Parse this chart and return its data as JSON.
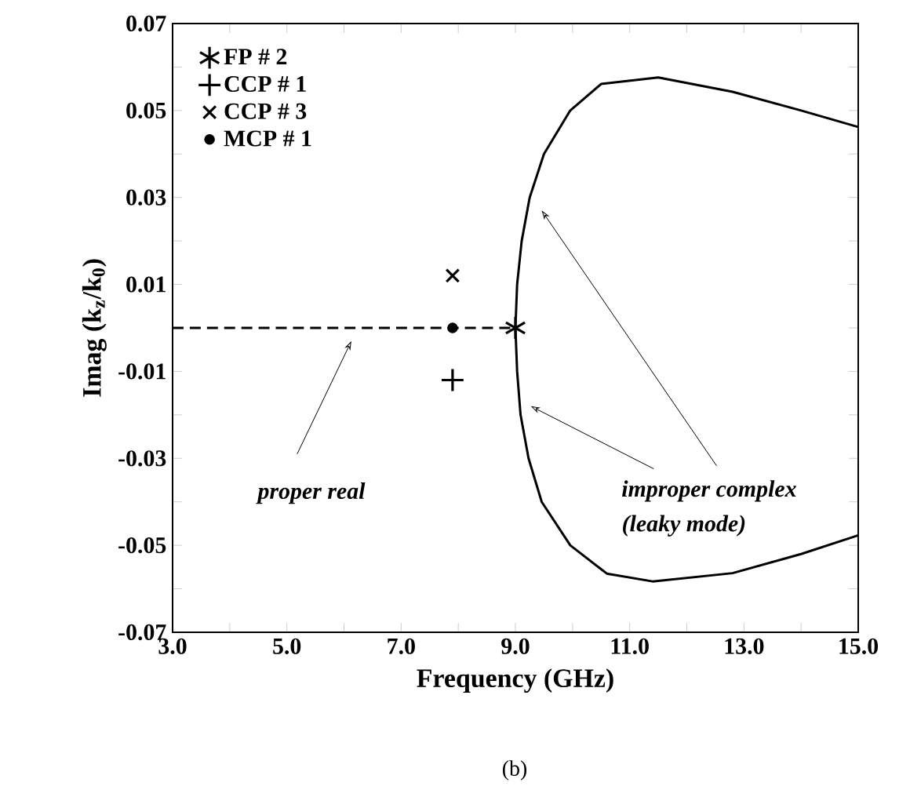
{
  "chart_data": {
    "type": "scatter",
    "xlabel": "Frequency (GHz)",
    "ylabel": "Imag (k$_{z}$/k$_{0}$)",
    "xlim": [
      3,
      15
    ],
    "ylim": [
      -0.07,
      0.07
    ],
    "xticks": [
      {
        "value": 3,
        "label": "3.0"
      },
      {
        "value": 4,
        "label": null
      },
      {
        "value": 5,
        "label": "5.0"
      },
      {
        "value": 6,
        "label": null
      },
      {
        "value": 7,
        "label": "7.0"
      },
      {
        "value": 8,
        "label": null
      },
      {
        "value": 9,
        "label": "9.0"
      },
      {
        "value": 10,
        "label": null
      },
      {
        "value": 11,
        "label": "11.0"
      },
      {
        "value": 12,
        "label": null
      },
      {
        "value": 13,
        "label": "13.0"
      },
      {
        "value": 14,
        "label": null
      },
      {
        "value": 15,
        "label": "15.0"
      }
    ],
    "yticks": [
      -0.07,
      {
        "value": -0.06,
        "label": null
      },
      -0.05,
      {
        "value": -0.04,
        "label": null
      },
      -0.03,
      {
        "value": -0.02,
        "label": null
      },
      -0.01,
      {
        "value": 0,
        "label": null
      },
      0.01,
      {
        "value": 0.02,
        "label": null
      },
      0.03,
      {
        "value": 0.04,
        "label": null
      },
      0.05,
      {
        "value": 0.06,
        "label": null
      },
      0.07
    ],
    "grid": false,
    "legend": "top left",
    "series": [
      {
        "type": "line",
        "color": "#000000",
        "line_style": "solid",
        "marker": "none",
        "x": [
          15,
          14,
          12.8,
          11.5,
          10.5,
          9.96,
          9.5,
          9.25,
          9.11,
          9.03,
          9.0,
          9.03,
          9.09,
          9.23,
          9.46,
          9.96,
          10.6,
          11.4,
          12.8,
          14,
          15
        ],
        "values": [
          0.0462,
          0.05,
          0.0543,
          0.0576,
          0.0561,
          0.05,
          0.04,
          0.03,
          0.02,
          0.01,
          0,
          -0.01,
          -0.02,
          -0.03,
          -0.04,
          -0.05,
          -0.0565,
          -0.0583,
          -0.0564,
          -0.052,
          -0.0477
        ]
      },
      {
        "type": "line",
        "color": "#000000",
        "line_style": "dashed",
        "marker": "none",
        "x": [
          3,
          9
        ],
        "values": [
          0,
          0
        ]
      },
      {
        "name": "FP # 2",
        "color": "#000000",
        "x": [
          9.0
        ],
        "values": [
          0
        ]
      },
      {
        "name": "CCP # 1",
        "color": "#000000",
        "marker": "plus",
        "x": [
          7.9
        ],
        "values": [
          -0.012
        ]
      },
      {
        "name": "CCP # 3",
        "color": "#000000",
        "marker": "cross",
        "x": [
          7.9
        ],
        "values": [
          0.012
        ]
      },
      {
        "name": "MCP # 1",
        "color": "#000000",
        "marker": "circle",
        "x": [
          7.9
        ],
        "values": [
          0
        ]
      }
    ],
    "annotations": [
      "proper real",
      "improper complex",
      "(leaky mode)",
      "(b)"
    ]
  }
}
